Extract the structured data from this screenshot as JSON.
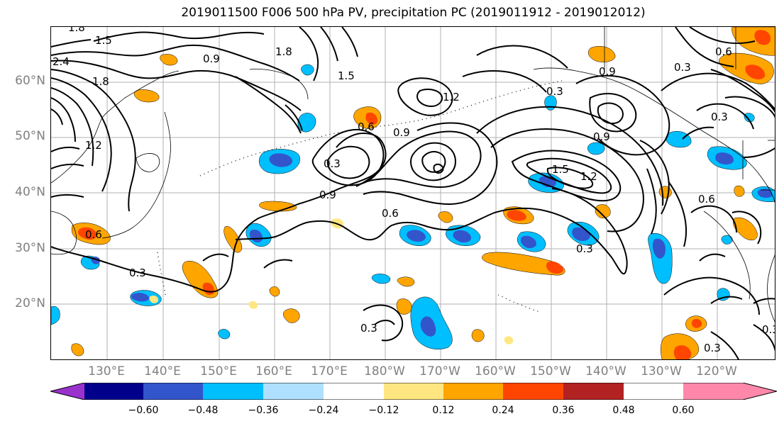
{
  "title": "2019011500 F006 500 hPa PV, precipitation PC (2019011912 - 2019012012)",
  "lat_labels": [
    "60°N",
    "50°N",
    "40°N",
    "30°N",
    "20°N"
  ],
  "lon_labels": [
    "130°E",
    "140°E",
    "150°E",
    "160°E",
    "170°E",
    "180°W",
    "170°W",
    "160°W",
    "150°W",
    "140°W",
    "130°W",
    "120°W"
  ],
  "colorbar": {
    "colors": [
      "#9932CC",
      "#00008B",
      "#3355CC",
      "#00BFFF",
      "#B0E0FF",
      "#FFFFFF",
      "#FFE680",
      "#FFA500",
      "#FF4500",
      "#B22222",
      "#FF88AA"
    ],
    "tick_labels": [
      "−0.60",
      "−0.48",
      "−0.36",
      "−0.24",
      "−0.12",
      "0.12",
      "0.24",
      "0.36",
      "0.48",
      "0.60"
    ]
  },
  "contour_labels": [
    "1.8",
    "1.5",
    "2.4",
    "0.9",
    "1.8",
    "1.2",
    "1.5",
    "0.6",
    "0.9",
    "1.2",
    "0.3",
    "0.9",
    "0.6",
    "0.3",
    "0.3",
    "0.6",
    "0.9",
    "0.3",
    "1.5",
    "1.2",
    "0.9",
    "0.3",
    "0.6",
    "0.3",
    "0.3",
    "0.3",
    "0.6",
    "0.3",
    "1.8"
  ]
}
